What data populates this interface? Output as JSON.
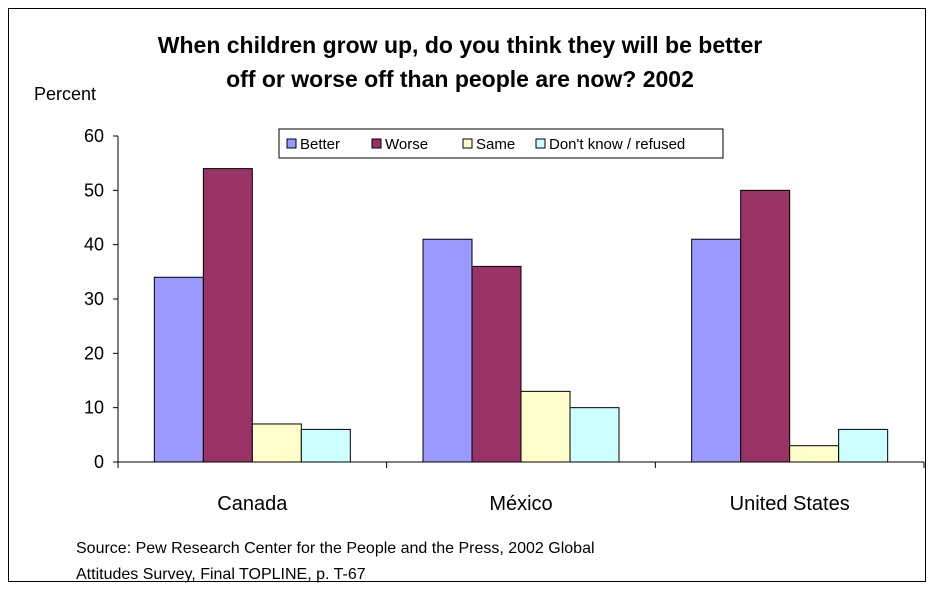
{
  "chart_data": {
    "type": "bar",
    "title_line1": "When children grow up, do you think they will be better",
    "title_line2": "off or worse off than people are now? 2002",
    "ylabel": "Percent",
    "ylim": [
      0,
      60
    ],
    "yticks": [
      0,
      10,
      20,
      30,
      40,
      50,
      60
    ],
    "categories": [
      "Canada",
      "México",
      "United States"
    ],
    "series": [
      {
        "name": "Better",
        "color": "#9999ff",
        "values": [
          34,
          41,
          41
        ]
      },
      {
        "name": "Worse",
        "color": "#993366",
        "values": [
          54,
          36,
          50
        ]
      },
      {
        "name": "Same",
        "color": "#ffffcc",
        "values": [
          7,
          13,
          3
        ]
      },
      {
        "name": "Don't know / refused",
        "color": "#ccffff",
        "values": [
          6,
          10,
          6
        ]
      }
    ],
    "legend_position": "top-center",
    "grid": false,
    "source_line1": "Source: Pew Research Center for the People and the Press, 2002 Global",
    "source_line2": "Attitudes Survey, Final TOPLINE, p. T-67"
  }
}
